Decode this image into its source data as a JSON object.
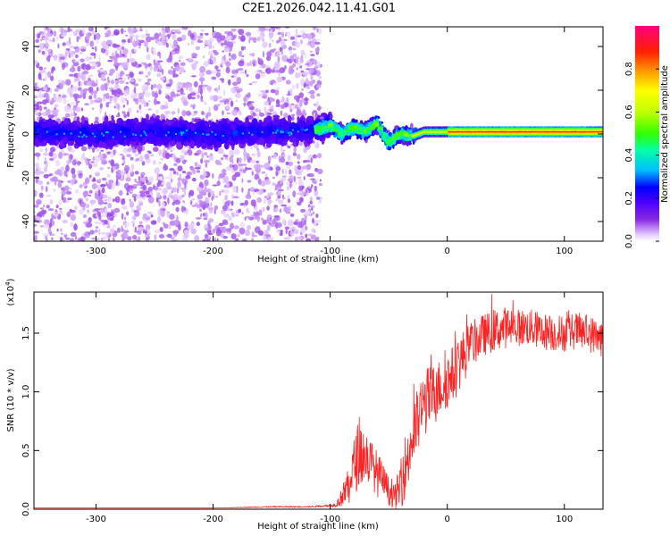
{
  "title": "C2E1.2026.042.11.41.G01",
  "chart_data": [
    {
      "type": "heatmap",
      "title": "C2E1.2026.042.11.41.G01",
      "xlabel": "Height of straight line (km)",
      "ylabel": "Frequency (Hz)",
      "xlim": [
        -353,
        133
      ],
      "ylim": [
        -49,
        49
      ],
      "x_ticks": [
        -300,
        -200,
        -100,
        0,
        100
      ],
      "y_ticks": [
        -40,
        -20,
        0,
        20,
        40
      ],
      "x_tick_labels": [
        "-300",
        "-200",
        "-100",
        "0",
        "100"
      ],
      "y_tick_labels": [
        "-40",
        "-20",
        "0",
        "20",
        "40"
      ],
      "colorbar": {
        "label": "Normalized spectral amplitude",
        "range": [
          0,
          1
        ],
        "ticks": [
          0.0,
          0.2,
          0.4,
          0.6,
          0.8
        ],
        "tick_labels": [
          "0.0",
          "0.2",
          "0.4",
          "0.6",
          "0.8"
        ]
      },
      "ridge": {
        "description_points_x": [
          -353,
          -300,
          -250,
          -200,
          -150,
          -110,
          -100,
          -90,
          -80,
          -70,
          -60,
          -50,
          -40,
          -30,
          -20,
          -10,
          0,
          20,
          50,
          100,
          133
        ],
        "description_points_y": [
          1,
          0,
          1,
          0,
          1,
          2,
          4,
          0,
          3,
          1,
          5,
          -4,
          0,
          -1,
          1,
          1,
          1,
          1,
          1,
          1,
          1
        ]
      }
    },
    {
      "type": "line",
      "xlabel": "Height of straight line (km)",
      "ylabel": "SNR (10 * v/v)",
      "y_multiplier": "(x10",
      "y_multiplier_exp": "4",
      "y_multiplier_close": ")",
      "xlim": [
        -353,
        133
      ],
      "ylim": [
        0,
        1.85
      ],
      "x_ticks": [
        -300,
        -200,
        -100,
        0,
        100
      ],
      "y_ticks": [
        0.0,
        0.5,
        1.0,
        1.5
      ],
      "x_tick_labels": [
        "-300",
        "-200",
        "-100",
        "0",
        "100"
      ],
      "y_tick_labels": [
        "0.0",
        "0.5",
        "1.0",
        "1.5"
      ],
      "series": [
        {
          "name": "SNR",
          "color": "#ff2020",
          "x": [
            -353,
            -300,
            -250,
            -200,
            -150,
            -120,
            -100,
            -95,
            -90,
            -85,
            -80,
            -75,
            -70,
            -65,
            -60,
            -55,
            -50,
            -45,
            -40,
            -35,
            -30,
            -25,
            -20,
            -15,
            -10,
            -5,
            0,
            5,
            10,
            20,
            30,
            40,
            50,
            60,
            70,
            80,
            90,
            100,
            110,
            120,
            133
          ],
          "values": [
            0.01,
            0.01,
            0.01,
            0.01,
            0.02,
            0.02,
            0.03,
            0.04,
            0.1,
            0.2,
            0.35,
            0.5,
            0.45,
            0.4,
            0.3,
            0.25,
            0.15,
            0.1,
            0.2,
            0.4,
            0.6,
            0.75,
            0.9,
            0.95,
            1.0,
            1.05,
            1.1,
            1.15,
            1.25,
            1.4,
            1.48,
            1.52,
            1.55,
            1.55,
            1.55,
            1.52,
            1.5,
            1.5,
            1.52,
            1.5,
            1.45
          ],
          "noise": [
            0,
            0,
            0,
            0,
            0.005,
            0.005,
            0.01,
            0.02,
            0.08,
            0.2,
            0.25,
            0.3,
            0.25,
            0.2,
            0.2,
            0.15,
            0.12,
            0.1,
            0.2,
            0.3,
            0.3,
            0.3,
            0.3,
            0.28,
            0.25,
            0.25,
            0.25,
            0.25,
            0.25,
            0.2,
            0.18,
            0.18,
            0.18,
            0.16,
            0.16,
            0.16,
            0.16,
            0.16,
            0.16,
            0.16,
            0.16
          ]
        }
      ]
    }
  ]
}
